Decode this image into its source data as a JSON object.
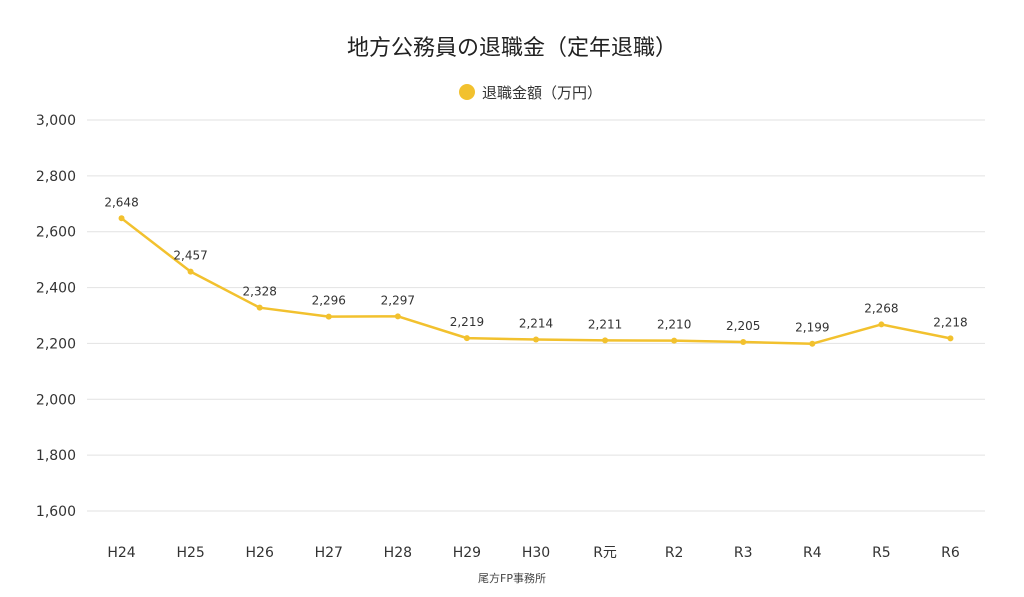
{
  "chart_data": {
    "type": "line",
    "title": "地方公務員の退職金（定年退職）",
    "categories": [
      "H24",
      "H25",
      "H26",
      "H27",
      "H28",
      "H29",
      "H30",
      "R元",
      "R2",
      "R3",
      "R4",
      "R5",
      "R6"
    ],
    "series": [
      {
        "name": "退職金額（万円）",
        "values": [
          2648,
          2457,
          2328,
          2296,
          2297,
          2219,
          2214,
          2211,
          2210,
          2205,
          2199,
          2268,
          2218
        ],
        "color": "#f2c12e"
      }
    ],
    "value_labels": [
      "2,648",
      "2,457",
      "2,328",
      "2,296",
      "2,297",
      "2,219",
      "2,214",
      "2,211",
      "2,210",
      "2,205",
      "2,199",
      "2,268",
      "2,218"
    ],
    "yticks": [
      1600,
      1800,
      2000,
      2200,
      2400,
      2600,
      2800,
      3000
    ],
    "ytick_labels": [
      "1,600",
      "1,800",
      "2,000",
      "2,200",
      "2,400",
      "2,600",
      "2,800",
      "3,000"
    ],
    "ylim": [
      1600,
      3000
    ],
    "grid": true,
    "legend": "top-center",
    "xlabel": "",
    "ylabel": "",
    "source": "尾方FP事務所"
  }
}
